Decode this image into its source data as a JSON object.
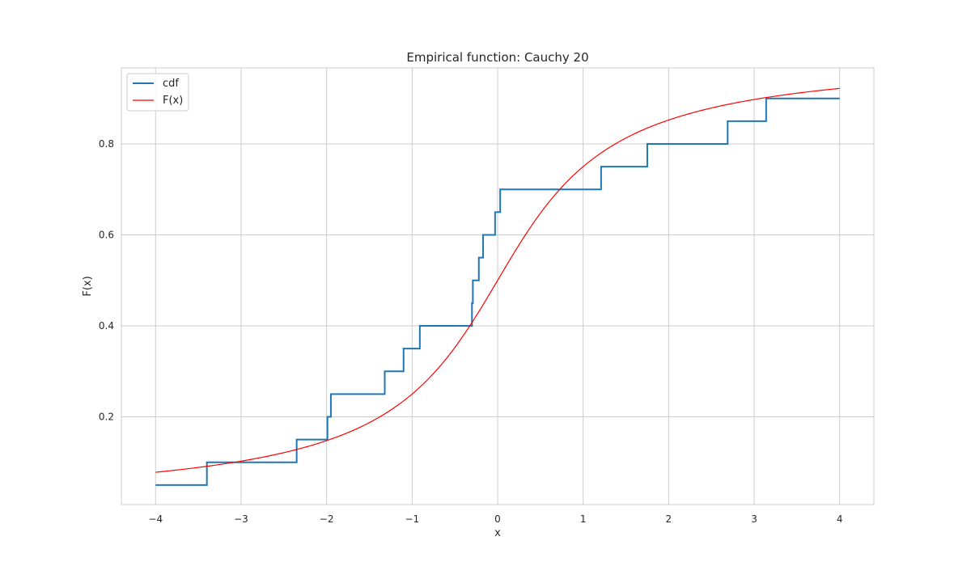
{
  "chart_data": {
    "type": "line",
    "title": "Empirical function: Cauchy 20",
    "xlabel": "x",
    "ylabel": "F(x)",
    "xlim": [
      -4.4,
      4.4
    ],
    "ylim": [
      0.007,
      0.967
    ],
    "xticks": [
      -4,
      -3,
      -2,
      -1,
      0,
      1,
      2,
      3,
      4
    ],
    "xtick_labels": [
      "−4",
      "−3",
      "−2",
      "−1",
      "0",
      "1",
      "2",
      "3",
      "4"
    ],
    "yticks": [
      0.2,
      0.4,
      0.6,
      0.8
    ],
    "ytick_labels": [
      "0.2",
      "0.4",
      "0.6",
      "0.8"
    ],
    "grid": true,
    "legend_position": "top-left",
    "series": [
      {
        "name": "cdf",
        "color": "#1f77b4",
        "style": "step",
        "x": [
          -4.0,
          -3.4,
          -2.35,
          -1.99,
          -1.95,
          -1.32,
          -1.1,
          -0.91,
          -0.3,
          -0.29,
          -0.22,
          -0.17,
          -0.03,
          0.03,
          1.21,
          1.75,
          2.69,
          3.14,
          4.0
        ],
        "y": [
          0.05,
          0.1,
          0.15,
          0.2,
          0.25,
          0.3,
          0.35,
          0.4,
          0.45,
          0.5,
          0.55,
          0.6,
          0.65,
          0.7,
          0.75,
          0.8,
          0.85,
          0.9,
          0.9
        ]
      },
      {
        "name": "F(x)",
        "color": "#ff0000",
        "style": "function",
        "function": "cauchy_cdf",
        "x_range": [
          -4,
          4
        ]
      }
    ]
  }
}
